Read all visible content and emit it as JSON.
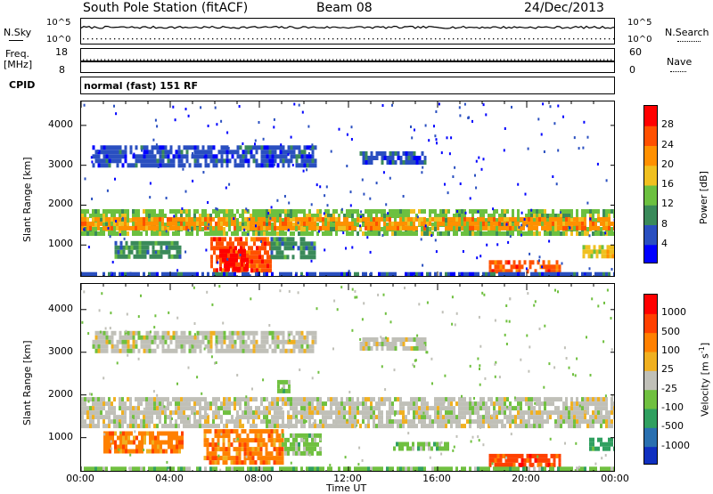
{
  "header": {
    "station": "South Pole Station (fitACF)",
    "beam": "Beam 08",
    "date": "24/Dec/2013"
  },
  "top_panels": {
    "nsky_label": "N.Sky",
    "nsky_ticks": [
      "10^5",
      "10^0"
    ],
    "nsearch_label": "N.Search",
    "nsearch_ticks": [
      "10^5",
      "10^0"
    ],
    "freq_label": "Freq.",
    "freq_unit": "[MHz]",
    "freq_ticks": [
      "18",
      "8"
    ],
    "nave_label": "Nave",
    "nave_ticks": [
      "60",
      "0"
    ],
    "cpid_label": "CPID",
    "cpid_value": "normal (fast) 151 RF"
  },
  "chart_data": [
    {
      "type": "heatmap",
      "name": "power",
      "ylabel": "Slant Range [km]",
      "ylim": [
        180,
        4600
      ],
      "yticks": [
        "4000",
        "3000",
        "2000",
        "1000"
      ],
      "ytick_values": [
        4000,
        3000,
        2000,
        1000
      ],
      "xlim": [
        0,
        24
      ],
      "colorbar_label": "Power [dB]",
      "colorbar_ticks": [
        "28",
        "24",
        "20",
        "16",
        "12",
        "8",
        "4"
      ],
      "colorbar_colors": [
        "#0000ff",
        "#2a4fc0",
        "#3a8a5a",
        "#6cc040",
        "#f0c020",
        "#ff9000",
        "#ff5000",
        "#ff0000"
      ],
      "bands": [
        {
          "x0": 0.0,
          "x1": 24.0,
          "y0": 1300,
          "y1": 1900,
          "level": 3
        },
        {
          "x0": 0.0,
          "x1": 24.0,
          "y0": 1450,
          "y1": 1700,
          "level": 5
        },
        {
          "x0": 0.5,
          "x1": 10.5,
          "y0": 3050,
          "y1": 3500,
          "level": 1
        },
        {
          "x0": 12.5,
          "x1": 15.5,
          "y0": 3050,
          "y1": 3350,
          "level": 1
        },
        {
          "x0": 1.5,
          "x1": 4.5,
          "y0": 700,
          "y1": 1100,
          "level": 2
        },
        {
          "x0": 5.8,
          "x1": 8.5,
          "y0": 400,
          "y1": 1200,
          "level": 6
        },
        {
          "x0": 6.2,
          "x1": 7.5,
          "y0": 450,
          "y1": 900,
          "level": 7
        },
        {
          "x0": 8.5,
          "x1": 10.5,
          "y0": 700,
          "y1": 1200,
          "level": 2
        },
        {
          "x0": 18.3,
          "x1": 21.5,
          "y0": 380,
          "y1": 620,
          "level": 6
        },
        {
          "x0": 22.5,
          "x1": 24.0,
          "y0": 700,
          "y1": 1000,
          "level": 4
        },
        {
          "x0": 0.0,
          "x1": 24.0,
          "y0": 200,
          "y1": 320,
          "level": 1
        }
      ]
    },
    {
      "type": "heatmap",
      "name": "velocity",
      "ylabel": "Slant Range [km]",
      "ylim": [
        180,
        4600
      ],
      "yticks": [
        "4000",
        "3000",
        "2000",
        "1000"
      ],
      "ytick_values": [
        4000,
        3000,
        2000,
        1000
      ],
      "xlim": [
        0,
        24
      ],
      "xlabel": "Time UT",
      "xticks": [
        "00:00",
        "04:00",
        "08:00",
        "12:00",
        "16:00",
        "20:00",
        "00:00"
      ],
      "xtick_values": [
        0,
        4,
        8,
        12,
        16,
        20,
        24
      ],
      "colorbar_label": "Velocity [m s",
      "colorbar_label_sup": "-1",
      "colorbar_label_end": "]",
      "colorbar_ticks": [
        "1000",
        "500",
        "100",
        "25",
        "-25",
        "-100",
        "-500",
        "-1000"
      ],
      "colorbar_colors": [
        "#1030c0",
        "#2a70b0",
        "#30a060",
        "#70c040",
        "#c0c0b8",
        "#f0b020",
        "#ff8000",
        "#ff4000",
        "#ff0000"
      ],
      "bands": [
        {
          "x0": 0.0,
          "x1": 24.0,
          "y0": 1250,
          "y1": 1950,
          "level": 4
        },
        {
          "x0": 0.5,
          "x1": 10.5,
          "y0": 3050,
          "y1": 3500,
          "level": 4
        },
        {
          "x0": 12.5,
          "x1": 15.5,
          "y0": 3050,
          "y1": 3350,
          "level": 4
        },
        {
          "x0": 1.0,
          "x1": 4.5,
          "y0": 650,
          "y1": 1150,
          "level": 6
        },
        {
          "x0": 5.5,
          "x1": 9.0,
          "y0": 450,
          "y1": 1200,
          "level": 6
        },
        {
          "x0": 9.0,
          "x1": 10.8,
          "y0": 600,
          "y1": 1100,
          "level": 3
        },
        {
          "x0": 8.8,
          "x1": 9.3,
          "y0": 2050,
          "y1": 2350,
          "level": 3
        },
        {
          "x0": 18.3,
          "x1": 21.5,
          "y0": 380,
          "y1": 620,
          "level": 7
        },
        {
          "x0": 14.0,
          "x1": 16.5,
          "y0": 700,
          "y1": 900,
          "level": 3
        },
        {
          "x0": 22.8,
          "x1": 24.0,
          "y0": 700,
          "y1": 1000,
          "level": 2
        },
        {
          "x0": 0.0,
          "x1": 24.0,
          "y0": 200,
          "y1": 320,
          "level": 3
        }
      ]
    }
  ]
}
